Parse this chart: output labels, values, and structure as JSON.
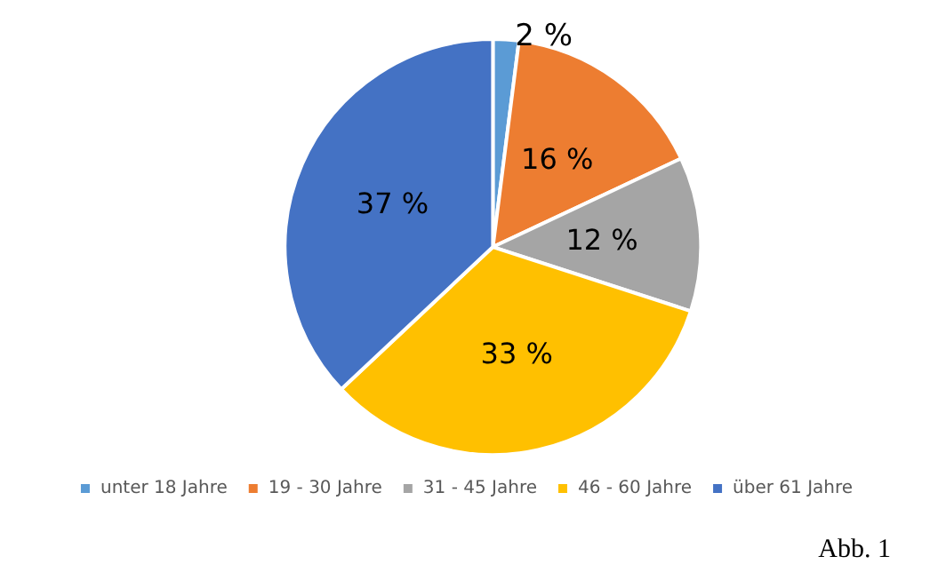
{
  "chart_data": {
    "type": "pie",
    "categories": [
      "unter 18 Jahre",
      "19 - 30 Jahre",
      "31 - 45 Jahre",
      "46 - 60 Jahre",
      "über 61 Jahre"
    ],
    "values": [
      2,
      16,
      12,
      33,
      37
    ],
    "colors": [
      "#5b9bd5",
      "#ed7d31",
      "#a5a5a5",
      "#ffc000",
      "#4472c4"
    ],
    "value_labels": [
      "2 %",
      "16 %",
      "12 %",
      "33 %",
      "37 %"
    ],
    "legend": "bottom",
    "annotations": [
      "Abb. 1"
    ]
  }
}
